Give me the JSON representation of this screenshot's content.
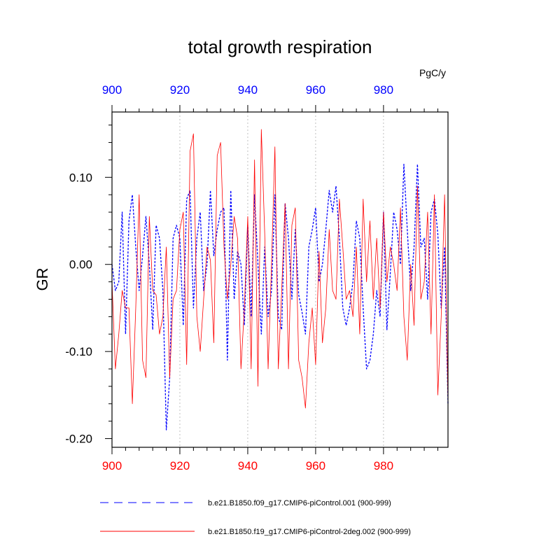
{
  "chart_data": {
    "type": "line",
    "title": "total growth respiration",
    "units": "PgC/y",
    "ylabel": "GR",
    "xlabel": "",
    "xlim": [
      900,
      999
    ],
    "ylim": [
      -0.21,
      0.175
    ],
    "x_ticks": [
      900,
      920,
      940,
      960,
      980
    ],
    "x_tick_labels": [
      "900",
      "920",
      "940",
      "960",
      "980"
    ],
    "y_ticks": [
      -0.2,
      -0.1,
      0.0,
      0.1
    ],
    "y_tick_labels": [
      "-0.20",
      "-0.10",
      "0.00",
      "0.10"
    ],
    "bottom_axis_color": "#ff0000",
    "top_axis_color": "#0000ff",
    "series": [
      {
        "name": "b.e21.B1850.f09_g17.CMIP6-piControl.001 (900-999)",
        "color": "#0000ff",
        "style": "dashed",
        "x_start": 900,
        "values": [
          0.0,
          -0.03,
          -0.02,
          0.06,
          -0.08,
          0.05,
          0.08,
          0.02,
          -0.03,
          0.01,
          0.055,
          0.0,
          -0.075,
          0.045,
          0.03,
          -0.03,
          -0.19,
          -0.13,
          0.03,
          0.045,
          0.03,
          -0.07,
          0.075,
          0.085,
          -0.05,
          0.03,
          0.06,
          -0.03,
          0.0,
          0.085,
          0.01,
          0.04,
          0.06,
          0.065,
          -0.11,
          0.085,
          -0.04,
          0.015,
          0.0,
          -0.07,
          0.045,
          -0.06,
          0.08,
          0.0,
          -0.08,
          0.02,
          -0.06,
          -0.03,
          0.08,
          -0.06,
          -0.075,
          0.07,
          0.03,
          -0.04,
          0.04,
          -0.035,
          -0.055,
          -0.08,
          0.02,
          0.04,
          0.065,
          -0.02,
          0.0,
          0.04,
          0.085,
          0.06,
          0.09,
          0.03,
          -0.05,
          -0.07,
          -0.05,
          -0.02,
          0.05,
          0.03,
          -0.05,
          -0.12,
          -0.11,
          -0.08,
          -0.03,
          -0.06,
          0.06,
          -0.075,
          -0.01,
          0.06,
          0.04,
          0.0,
          0.115,
          0.04,
          -0.03,
          0.02,
          0.115,
          0.02,
          0.03,
          -0.04,
          0.06,
          0.075,
          0.035,
          -0.05,
          0.02,
          -0.16
        ]
      },
      {
        "name": "b.e21.B1850.f19_g17.CMIP6-piControl-2deg.002 (900-999)",
        "color": "#ff0000",
        "style": "solid",
        "x_start": 900,
        "values": [
          -0.02,
          -0.12,
          -0.08,
          -0.03,
          -0.05,
          -0.05,
          -0.16,
          -0.05,
          0.08,
          -0.11,
          -0.13,
          0.055,
          -0.03,
          -0.035,
          -0.08,
          -0.06,
          0.02,
          -0.13,
          -0.04,
          -0.03,
          0.04,
          0.06,
          -0.115,
          0.13,
          0.15,
          -0.06,
          -0.1,
          -0.04,
          0.02,
          0.005,
          -0.09,
          0.125,
          0.14,
          0.02,
          -0.04,
          0.0,
          0.055,
          0.03,
          -0.12,
          -0.05,
          0.055,
          -0.12,
          0.12,
          -0.14,
          0.155,
          0.035,
          -0.12,
          0.0,
          0.135,
          -0.12,
          -0.03,
          0.07,
          -0.12,
          0.045,
          0.065,
          -0.11,
          -0.13,
          -0.165,
          -0.09,
          -0.05,
          -0.115,
          0.015,
          -0.09,
          -0.05,
          0.04,
          -0.03,
          -0.04,
          0.075,
          0.02,
          -0.04,
          -0.03,
          -0.06,
          0.02,
          -0.08,
          0.075,
          -0.02,
          0.05,
          -0.04,
          0.03,
          -0.05,
          0.06,
          -0.02,
          0.02,
          0.0,
          -0.03,
          0.065,
          -0.06,
          -0.11,
          0.0,
          -0.07,
          0.09,
          -0.04,
          -0.02,
          0.06,
          -0.08,
          0.08,
          -0.15,
          -0.06,
          0.08,
          -0.16
        ]
      }
    ],
    "legend_position": "bottom"
  }
}
